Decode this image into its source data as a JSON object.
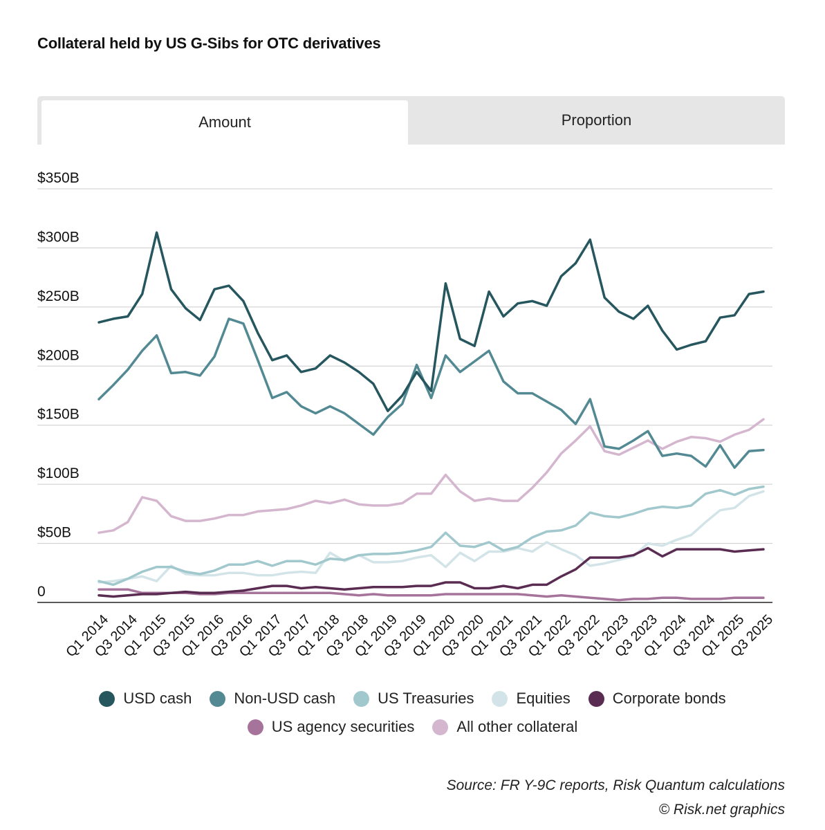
{
  "title": "Collateral held by US G-Sibs for OTC derivatives",
  "tabs": {
    "amount": "Amount",
    "proportion": "Proportion"
  },
  "source": "Source: FR Y-9C reports, Risk Quantum calculations",
  "credit": "© Risk.net graphics",
  "chart_data": {
    "type": "line",
    "ylim": [
      0,
      350
    ],
    "y_ticks": [
      {
        "value": 0,
        "label": "0"
      },
      {
        "value": 50,
        "label": "$50B"
      },
      {
        "value": 100,
        "label": "$100B"
      },
      {
        "value": 150,
        "label": "$150B"
      },
      {
        "value": 200,
        "label": "$200B"
      },
      {
        "value": 250,
        "label": "$250B"
      },
      {
        "value": 300,
        "label": "$300B"
      },
      {
        "value": 350,
        "label": "$350B"
      }
    ],
    "x_tick_labels": [
      "Q1 2014",
      "Q3 2014",
      "Q1 2015",
      "Q3 2015",
      "Q1 2016",
      "Q3 2016",
      "Q1 2017",
      "Q3 2017",
      "Q1 2018",
      "Q3 2018",
      "Q1 2019",
      "Q3 2019",
      "Q1 2020",
      "Q3 2020",
      "Q1 2021",
      "Q3 2021",
      "Q1 2022",
      "Q3 2022",
      "Q1 2023",
      "Q3 2023",
      "Q1 2024",
      "Q3 2024",
      "Q1 2025",
      "Q3 2025"
    ],
    "categories": [
      "Q1 2014",
      "Q2 2014",
      "Q3 2014",
      "Q4 2014",
      "Q1 2015",
      "Q2 2015",
      "Q3 2015",
      "Q4 2015",
      "Q1 2016",
      "Q2 2016",
      "Q3 2016",
      "Q4 2016",
      "Q1 2017",
      "Q2 2017",
      "Q3 2017",
      "Q4 2017",
      "Q1 2018",
      "Q2 2018",
      "Q3 2018",
      "Q4 2018",
      "Q1 2019",
      "Q2 2019",
      "Q3 2019",
      "Q4 2019",
      "Q1 2020",
      "Q2 2020",
      "Q3 2020",
      "Q4 2020",
      "Q1 2021",
      "Q2 2021",
      "Q3 2021",
      "Q4 2021",
      "Q1 2022",
      "Q2 2022",
      "Q3 2022",
      "Q4 2022",
      "Q1 2023",
      "Q2 2023",
      "Q3 2023",
      "Q4 2023",
      "Q1 2024",
      "Q2 2024",
      "Q3 2024",
      "Q4 2024",
      "Q1 2025",
      "Q2 2025",
      "Q3 2025"
    ],
    "grid": true,
    "legend_position": "bottom",
    "series": [
      {
        "name": "All other collateral",
        "color": "#d4b6cf",
        "values": [
          59,
          61,
          68,
          89,
          86,
          73,
          69,
          69,
          71,
          74,
          74,
          77,
          78,
          79,
          82,
          86,
          84,
          87,
          83,
          82,
          82,
          84,
          92,
          92,
          108,
          94,
          86,
          88,
          86,
          86,
          97,
          110,
          126,
          137,
          149,
          128,
          125,
          131,
          137,
          130,
          136,
          140,
          139,
          136,
          142,
          146,
          155
        ]
      },
      {
        "name": "US agency securities",
        "color": "#a6739b",
        "values": [
          11,
          11,
          11,
          8,
          8,
          8,
          8,
          7,
          7,
          8,
          8,
          8,
          8,
          8,
          8,
          8,
          8,
          7,
          6,
          7,
          6,
          6,
          6,
          6,
          7,
          7,
          7,
          7,
          7,
          7,
          6,
          5,
          6,
          5,
          4,
          3,
          2,
          3,
          3,
          4,
          4,
          3,
          3,
          3,
          4,
          4,
          4
        ]
      },
      {
        "name": "Equities",
        "color": "#d3e4e8",
        "values": [
          17,
          18,
          20,
          22,
          18,
          31,
          24,
          23,
          23,
          25,
          25,
          23,
          23,
          25,
          26,
          25,
          42,
          35,
          40,
          34,
          34,
          35,
          38,
          40,
          30,
          42,
          35,
          43,
          43,
          46,
          43,
          51,
          45,
          40,
          31,
          33,
          36,
          39,
          50,
          48,
          53,
          57,
          68,
          78,
          80,
          90,
          94
        ]
      },
      {
        "name": "US Treasuries",
        "color": "#a1c8cd",
        "values": [
          18,
          15,
          20,
          26,
          30,
          30,
          26,
          24,
          27,
          32,
          32,
          35,
          31,
          35,
          35,
          32,
          37,
          36,
          40,
          41,
          41,
          42,
          44,
          47,
          59,
          48,
          47,
          51,
          44,
          47,
          55,
          60,
          61,
          65,
          76,
          73,
          72,
          75,
          79,
          81,
          80,
          82,
          92,
          95,
          91,
          96,
          98
        ]
      },
      {
        "name": "Corporate bonds",
        "color": "#5b2c52",
        "values": [
          6,
          5,
          6,
          7,
          7,
          8,
          9,
          8,
          8,
          9,
          10,
          12,
          14,
          14,
          12,
          13,
          12,
          11,
          12,
          13,
          13,
          13,
          14,
          14,
          17,
          17,
          12,
          12,
          14,
          12,
          15,
          15,
          22,
          28,
          38,
          38,
          38,
          40,
          46,
          39,
          45,
          45,
          45,
          45,
          43,
          44,
          45
        ]
      },
      {
        "name": "Non-USD cash",
        "color": "#538993",
        "values": [
          172,
          184,
          197,
          213,
          226,
          194,
          195,
          192,
          208,
          240,
          236,
          205,
          173,
          178,
          166,
          160,
          166,
          160,
          151,
          142,
          157,
          168,
          201,
          173,
          209,
          195,
          204,
          213,
          187,
          177,
          177,
          170,
          163,
          151,
          172,
          132,
          130,
          137,
          145,
          124,
          126,
          124,
          115,
          133,
          114,
          128,
          129
        ]
      },
      {
        "name": "USD cash",
        "color": "#26565e",
        "values": [
          237,
          240,
          242,
          261,
          313,
          265,
          249,
          239,
          265,
          268,
          255,
          228,
          205,
          209,
          195,
          198,
          209,
          203,
          195,
          185,
          162,
          175,
          195,
          179,
          270,
          223,
          217,
          263,
          242,
          253,
          255,
          251,
          276,
          287,
          307,
          258,
          246,
          240,
          251,
          230,
          214,
          218,
          221,
          241,
          243,
          261,
          263
        ]
      }
    ],
    "legend": [
      {
        "name": "USD cash",
        "color": "#26565e"
      },
      {
        "name": "Non-USD cash",
        "color": "#538993"
      },
      {
        "name": "US Treasuries",
        "color": "#a1c8cd"
      },
      {
        "name": "Equities",
        "color": "#d3e4e8"
      },
      {
        "name": "Corporate bonds",
        "color": "#5b2c52"
      },
      {
        "name": "US agency securities",
        "color": "#a6739b"
      },
      {
        "name": "All other collateral",
        "color": "#d4b6cf"
      }
    ]
  }
}
